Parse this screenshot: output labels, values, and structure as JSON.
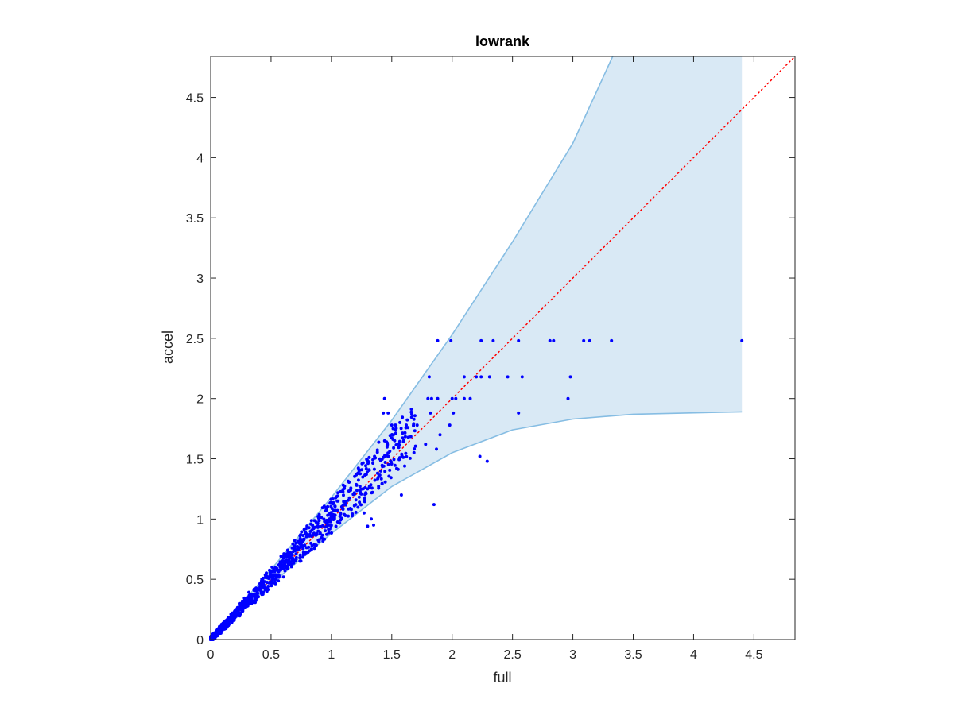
{
  "chart_data": {
    "type": "scatter",
    "title": "lowrank",
    "xlabel": "full",
    "ylabel": "accel",
    "xlim": [
      0,
      4.84
    ],
    "ylim": [
      0,
      4.84
    ],
    "grid": false,
    "x_ticks": [
      "0",
      "0.5",
      "1",
      "1.5",
      "2",
      "2.5",
      "3",
      "3.5",
      "4",
      "4.5"
    ],
    "y_ticks": [
      "0",
      "0.5",
      "1",
      "1.5",
      "2",
      "2.5",
      "3",
      "3.5",
      "4",
      "4.5"
    ],
    "colors": {
      "points": "#0000ff",
      "band_fill": "#d9e9f5",
      "band_edge": "#86bde3",
      "reference_line": "#ff0000",
      "axes": "#262626"
    },
    "band": {
      "upper": [
        [
          0,
          0
        ],
        [
          0.5,
          0.58
        ],
        [
          1.0,
          1.18
        ],
        [
          1.5,
          1.82
        ],
        [
          2.0,
          2.53
        ],
        [
          2.5,
          3.3
        ],
        [
          3.0,
          4.12
        ],
        [
          3.33,
          4.84
        ]
      ],
      "upper_cap": [
        [
          3.33,
          4.84
        ],
        [
          4.4,
          4.84
        ]
      ],
      "lower": [
        [
          0,
          0
        ],
        [
          0.5,
          0.46
        ],
        [
          1.0,
          0.88
        ],
        [
          1.5,
          1.27
        ],
        [
          2.0,
          1.55
        ],
        [
          2.5,
          1.74
        ],
        [
          3.0,
          1.83
        ],
        [
          3.5,
          1.87
        ],
        [
          4.4,
          1.89
        ]
      ],
      "right_edge_x": 4.4
    },
    "reference_line": {
      "from": [
        0,
        0
      ],
      "to": [
        4.84,
        4.84
      ],
      "style": "dotted"
    },
    "scatter_seed": 12345,
    "highlight_points": [
      [
        1.88,
        2.48
      ],
      [
        1.99,
        2.48
      ],
      [
        2.24,
        2.48
      ],
      [
        2.34,
        2.48
      ],
      [
        2.55,
        2.48
      ],
      [
        2.81,
        2.48
      ],
      [
        2.84,
        2.48
      ],
      [
        3.09,
        2.48
      ],
      [
        3.14,
        2.48
      ],
      [
        3.32,
        2.48
      ],
      [
        4.4,
        2.48
      ],
      [
        1.81,
        2.18
      ],
      [
        2.1,
        2.18
      ],
      [
        2.2,
        2.18
      ],
      [
        2.24,
        2.18
      ],
      [
        2.31,
        2.18
      ],
      [
        2.46,
        2.18
      ],
      [
        2.58,
        2.18
      ],
      [
        2.98,
        2.18
      ],
      [
        1.8,
        2.0
      ],
      [
        1.83,
        2.0
      ],
      [
        1.88,
        2.0
      ],
      [
        2.0,
        2.0
      ],
      [
        2.03,
        2.0
      ],
      [
        2.1,
        2.0
      ],
      [
        2.15,
        2.0
      ],
      [
        2.96,
        2.0
      ],
      [
        1.44,
        2.0
      ],
      [
        1.43,
        1.88
      ],
      [
        1.47,
        1.88
      ],
      [
        1.5,
        1.78
      ],
      [
        1.53,
        1.78
      ],
      [
        1.62,
        1.78
      ],
      [
        1.68,
        1.78
      ],
      [
        1.71,
        1.78
      ],
      [
        1.82,
        1.88
      ],
      [
        2.55,
        1.88
      ],
      [
        2.01,
        1.88
      ],
      [
        1.98,
        1.78
      ],
      [
        2.23,
        1.52
      ],
      [
        2.29,
        1.48
      ],
      [
        1.87,
        1.58
      ],
      [
        1.85,
        1.12
      ],
      [
        1.58,
        1.2
      ],
      [
        1.3,
        0.94
      ],
      [
        1.33,
        1.0
      ],
      [
        1.35,
        0.95
      ],
      [
        1.27,
        1.05
      ],
      [
        1.78,
        1.62
      ],
      [
        1.9,
        1.7
      ]
    ]
  }
}
